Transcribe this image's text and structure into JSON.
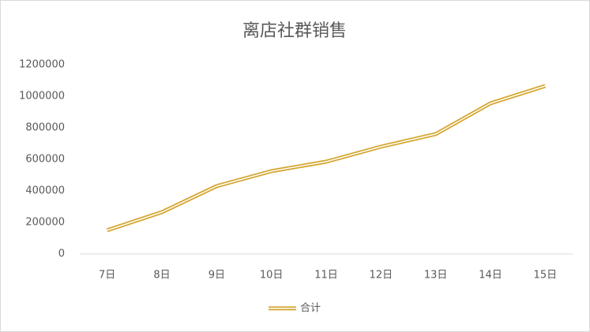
{
  "chart_data": {
    "type": "line",
    "title": "离店社群销售",
    "categories": [
      "7日",
      "8日",
      "9日",
      "10日",
      "11日",
      "12日",
      "13日",
      "14日",
      "15日"
    ],
    "series": [
      {
        "name": "合计",
        "color": "#d4a52c",
        "values": [
          150000,
          265000,
          430000,
          525000,
          585000,
          680000,
          760000,
          955000,
          1065000
        ]
      }
    ],
    "ylim": [
      0,
      1200000
    ],
    "yticks": [
      0,
      200000,
      400000,
      600000,
      800000,
      1000000,
      1200000
    ],
    "grid": false,
    "legend": "bottom"
  }
}
